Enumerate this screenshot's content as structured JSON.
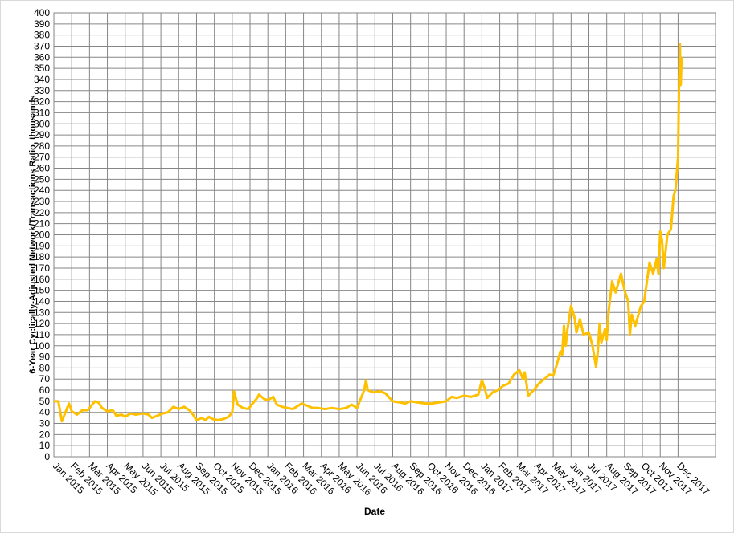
{
  "chart_data": {
    "type": "line",
    "x_label": "Date",
    "y_label": "6-Year Cyclically-Adjusted  Network/Transactions Ratio, thousands",
    "xlim": [
      0,
      37.1
    ],
    "xticks": [
      {
        "value": 0,
        "label": "Jan 2015"
      },
      {
        "value": 1,
        "label": "Feb 2015"
      },
      {
        "value": 2,
        "label": "Mar 2015"
      },
      {
        "value": 3,
        "label": "Apr 2015"
      },
      {
        "value": 4,
        "label": "May 2015"
      },
      {
        "value": 5,
        "label": "Jun 2015"
      },
      {
        "value": 6,
        "label": "Jul 2015"
      },
      {
        "value": 7,
        "label": "Aug 2015"
      },
      {
        "value": 8,
        "label": "Sep 2015"
      },
      {
        "value": 9,
        "label": "Oct 2015"
      },
      {
        "value": 10,
        "label": "Nov 2015"
      },
      {
        "value": 11,
        "label": "Dec 2015"
      },
      {
        "value": 12,
        "label": "Jan 2016"
      },
      {
        "value": 13,
        "label": "Feb 2016"
      },
      {
        "value": 14,
        "label": "Mar 2016"
      },
      {
        "value": 15,
        "label": "Apr 2016"
      },
      {
        "value": 16,
        "label": "May 2016"
      },
      {
        "value": 17,
        "label": "Jun 2016"
      },
      {
        "value": 18,
        "label": "Jul 2016"
      },
      {
        "value": 19,
        "label": "Aug 2016"
      },
      {
        "value": 20,
        "label": "Sep 2016"
      },
      {
        "value": 21,
        "label": "Oct 2016"
      },
      {
        "value": 22,
        "label": "Nov 2016"
      },
      {
        "value": 23,
        "label": "Dec 2016"
      },
      {
        "value": 24,
        "label": "Jan 2017"
      },
      {
        "value": 25,
        "label": "Feb 2017"
      },
      {
        "value": 26,
        "label": "Mar 2017"
      },
      {
        "value": 27,
        "label": "Apr 2017"
      },
      {
        "value": 28,
        "label": "May 2017"
      },
      {
        "value": 29,
        "label": "Jun 2017"
      },
      {
        "value": 30,
        "label": "Jul 2017"
      },
      {
        "value": 31,
        "label": "Aug 2017"
      },
      {
        "value": 32,
        "label": "Sep 2017"
      },
      {
        "value": 33,
        "label": "Oct 2017"
      },
      {
        "value": 34,
        "label": "Nov 2017"
      },
      {
        "value": 35,
        "label": "Dec 2017"
      }
    ],
    "ylim": [
      0,
      400
    ],
    "yticks": [
      0,
      10,
      20,
      30,
      40,
      50,
      60,
      70,
      80,
      90,
      100,
      110,
      120,
      130,
      140,
      150,
      160,
      170,
      180,
      190,
      200,
      210,
      220,
      230,
      240,
      250,
      260,
      270,
      280,
      290,
      300,
      310,
      320,
      330,
      340,
      350,
      360,
      370,
      380,
      390,
      400
    ],
    "grid": true,
    "series": [
      {
        "color": "#FFC000",
        "x": [
          0,
          0.25,
          0.45,
          0.6,
          0.85,
          1.0,
          1.3,
          1.6,
          1.9,
          2.1,
          2.3,
          2.5,
          2.7,
          3.0,
          3.3,
          3.5,
          3.8,
          4.0,
          4.3,
          4.6,
          5.0,
          5.3,
          5.5,
          5.8,
          6.1,
          6.4,
          6.7,
          7.0,
          7.3,
          7.6,
          7.8,
          8.0,
          8.3,
          8.5,
          8.7,
          8.9,
          9.2,
          9.5,
          9.8,
          10.0,
          10.05,
          10.1,
          10.3,
          10.6,
          10.9,
          11.1,
          11.4,
          11.5,
          11.8,
          12.0,
          12.3,
          12.5,
          12.8,
          13.1,
          13.4,
          13.7,
          13.9,
          14.2,
          14.5,
          14.8,
          15.2,
          15.6,
          16.0,
          16.4,
          16.7,
          17.0,
          17.2,
          17.4,
          17.5,
          17.6,
          17.9,
          18.3,
          18.6,
          19.0,
          19.4,
          19.7,
          20.0,
          20.4,
          20.8,
          21.2,
          21.6,
          22.0,
          22.3,
          22.6,
          23.0,
          23.4,
          23.8,
          24.0,
          24.15,
          24.3,
          24.6,
          24.9,
          25.2,
          25.5,
          25.8,
          26.1,
          26.3,
          26.4,
          26.6,
          26.9,
          27.2,
          27.5,
          27.8,
          28.0,
          28.2,
          28.4,
          28.5,
          28.6,
          28.7,
          28.8,
          29.0,
          29.2,
          29.3,
          29.5,
          29.7,
          30.0,
          30.2,
          30.4,
          30.5,
          30.6,
          30.7,
          30.9,
          31.0,
          31.1,
          31.3,
          31.5,
          31.8,
          32.0,
          32.2,
          32.3,
          32.4,
          32.6,
          32.9,
          33.1,
          33.4,
          33.6,
          33.8,
          33.9,
          34.0,
          34.1,
          34.2,
          34.4,
          34.6,
          34.75,
          34.85,
          35.0,
          35.05,
          35.1,
          35.15,
          35.2
        ],
        "values": [
          50,
          50,
          32,
          38,
          48,
          41,
          38,
          42,
          42,
          46,
          50,
          49,
          44,
          41,
          42,
          37,
          38,
          36,
          39,
          38,
          39,
          38,
          35,
          37,
          39,
          40,
          45,
          43,
          45,
          42,
          38,
          33,
          35,
          33,
          36,
          34,
          33,
          34,
          36,
          40,
          48,
          59,
          47,
          44,
          43,
          47,
          53,
          56,
          52,
          51,
          54,
          47,
          45,
          44,
          43,
          46,
          48,
          46,
          44,
          44,
          43,
          44,
          43,
          44,
          47,
          44,
          52,
          60,
          69,
          60,
          58,
          59,
          57,
          50,
          49,
          48,
          50,
          49,
          48,
          48,
          49,
          50,
          54,
          53,
          55,
          54,
          56,
          69,
          62,
          53,
          58,
          60,
          64,
          66,
          74,
          78,
          70,
          76,
          55,
          60,
          66,
          70,
          74,
          73,
          83,
          95,
          92,
          118,
          100,
          115,
          136,
          125,
          112,
          124,
          110,
          112,
          100,
          81,
          95,
          120,
          103,
          115,
          105,
          130,
          158,
          148,
          165,
          150,
          140,
          110,
          128,
          118,
          135,
          140,
          175,
          165,
          178,
          165,
          203,
          195,
          170,
          200,
          205,
          235,
          240,
          270,
          330,
          372,
          335,
          360
        ]
      }
    ]
  }
}
